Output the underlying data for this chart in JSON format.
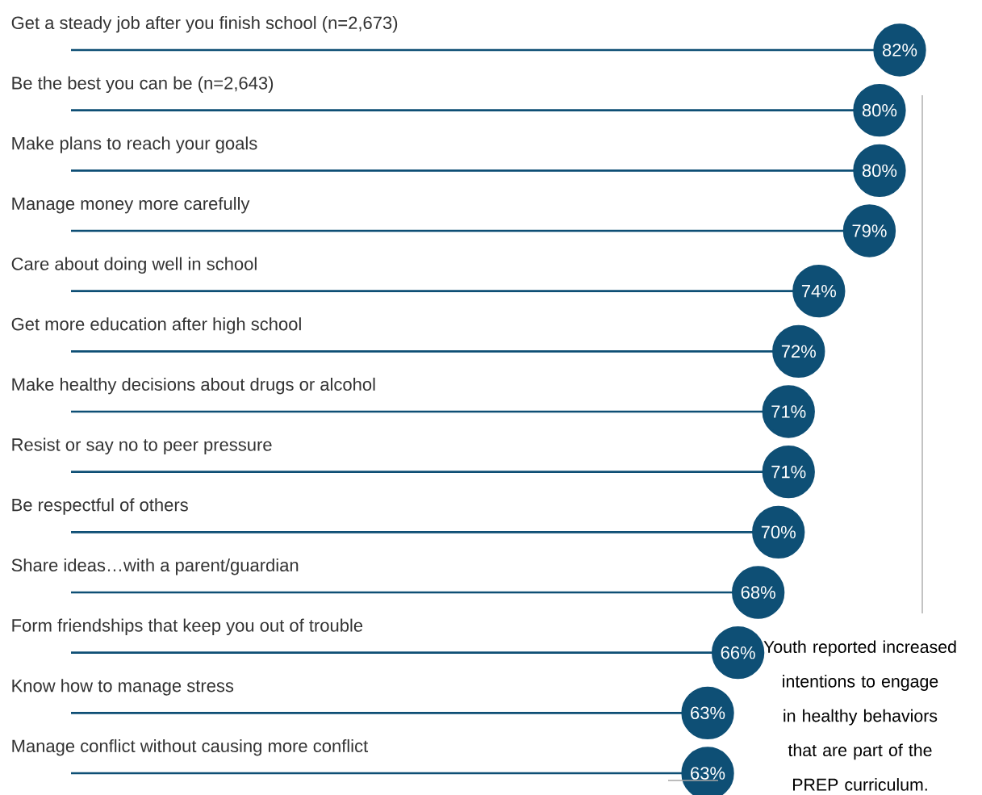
{
  "chart_data": {
    "type": "lollipop",
    "orientation": "horizontal",
    "categories": [
      "Get a steady job after you finish school (n=2,673)",
      "Be the best you can be (n=2,643)",
      "Make plans to reach your goals",
      "Manage money more carefully",
      "Care about doing well in school",
      "Get more education after high school",
      "Make healthy decisions about drugs or alcohol",
      "Resist or say no to peer pressure",
      "Be respectful of others",
      "Share ideas…with a parent/guardian",
      "Form friendships that keep you out of trouble",
      "Know how to manage stress",
      "Manage conflict without causing more conflict"
    ],
    "values": [
      82,
      80,
      80,
      79,
      74,
      72,
      71,
      71,
      70,
      68,
      66,
      63,
      63
    ],
    "value_labels": [
      "82%",
      "80%",
      "80%",
      "79%",
      "74%",
      "72%",
      "71%",
      "71%",
      "70%",
      "68%",
      "66%",
      "63%",
      "63%"
    ],
    "color": "#0e4f75",
    "annotations": [
      "Youth reported increased intentions to engage in healthy behaviors that are part of the PREP curriculum."
    ]
  }
}
